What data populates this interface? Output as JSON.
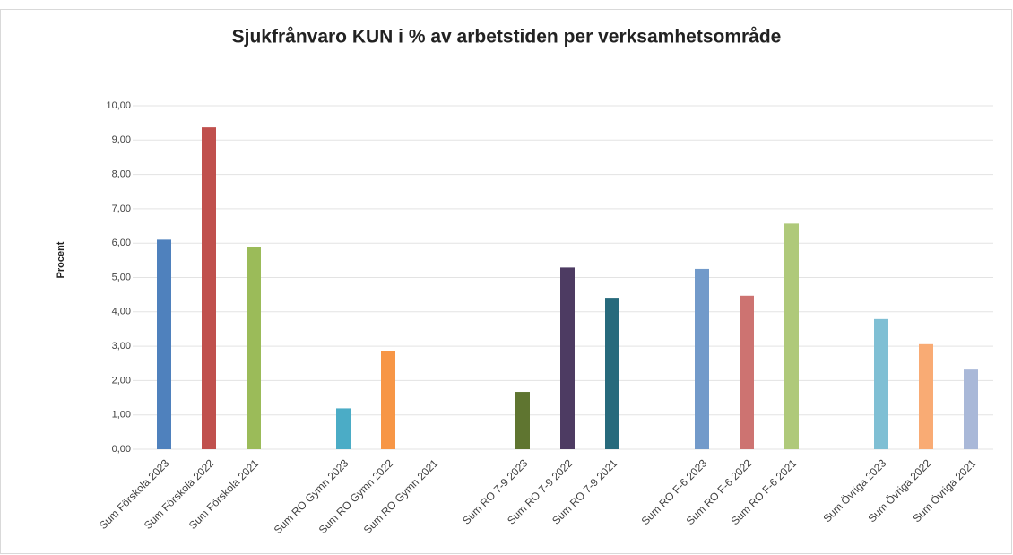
{
  "chart_data": {
    "type": "bar",
    "title": "Sjukfrånvaro KUN i % av arbetstiden per verksamhetsområde",
    "ylabel": "Procent",
    "categories": [
      "Sum Förskola 2023",
      "Sum Förskola 2022",
      "Sum Förskola 2021",
      null,
      "Sum RO Gymn 2023",
      "Sum RO Gymn 2022",
      "Sum RO Gymn 2021",
      null,
      "Sum RO 7-9 2023",
      "Sum RO 7-9 2022",
      "Sum RO 7-9 2021",
      null,
      "Sum RO F-6 2023",
      "Sum RO F-6 2022",
      "Sum RO F-6 2021",
      null,
      "Sum Övriga 2023",
      "Sum Övriga 2022",
      "Sum Övriga 2021"
    ],
    "values": [
      6.1,
      9.37,
      5.9,
      null,
      1.19,
      2.86,
      null,
      null,
      1.67,
      5.29,
      4.41,
      null,
      5.25,
      4.47,
      6.57,
      null,
      3.79,
      3.06,
      2.32
    ],
    "colors": [
      "#4f81bd",
      "#c0504d",
      "#9bbb59",
      null,
      "#4bacc6",
      "#f79646",
      "#2c4d75",
      null,
      "#5f7530",
      "#4d3b62",
      "#276a7c",
      null,
      "#729aca",
      "#cd7371",
      "#afc97a",
      null,
      "#7fbfd4",
      "#f9ab74",
      "#a9b8d8"
    ],
    "ylim": [
      0,
      10
    ],
    "yticks": [
      {
        "value": 0,
        "label": "0,00"
      },
      {
        "value": 1,
        "label": "1,00"
      },
      {
        "value": 2,
        "label": "2,00"
      },
      {
        "value": 3,
        "label": "3,00"
      },
      {
        "value": 4,
        "label": "4,00"
      },
      {
        "value": 5,
        "label": "5,00"
      },
      {
        "value": 6,
        "label": "6,00"
      },
      {
        "value": 7,
        "label": "7,00"
      },
      {
        "value": 8,
        "label": "8,00"
      },
      {
        "value": 9,
        "label": "9,00"
      },
      {
        "value": 10,
        "label": "10,00"
      }
    ],
    "grid": true
  }
}
